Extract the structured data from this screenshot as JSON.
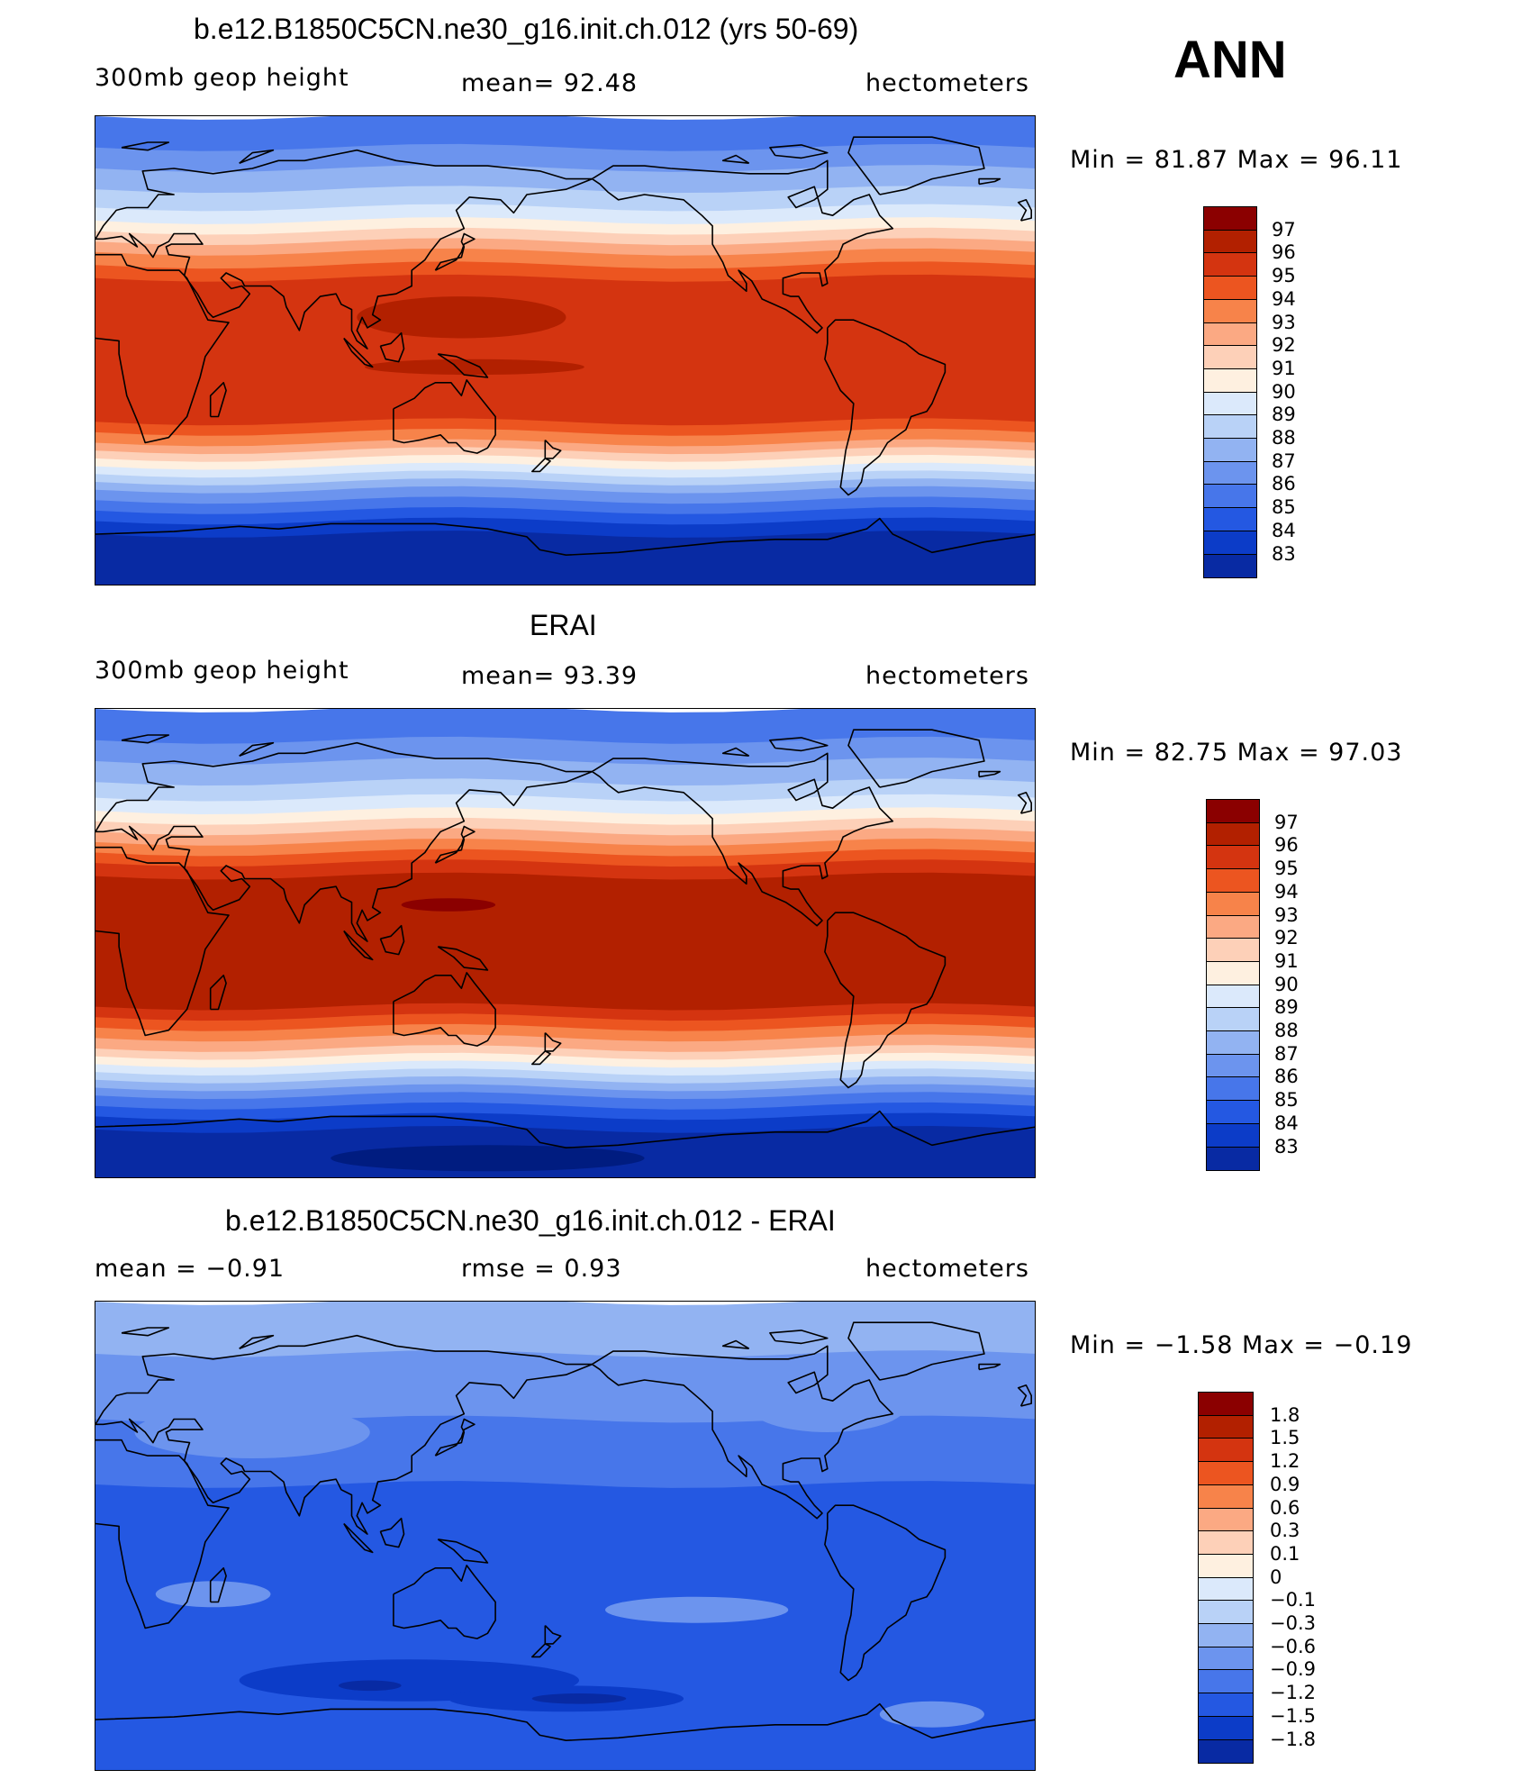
{
  "corner_label": "ANN",
  "panels": [
    {
      "title": "b.e12.B1850C5CN.ne30_g16.init.ch.012 (yrs 50-69)",
      "left_text": "300mb  geop  height",
      "center_text": "mean=   92.48",
      "units": "hectometers",
      "minmax": "Min  =    81.87  Max  =    96.11",
      "colorbar_labels": [
        "97",
        "96",
        "95",
        "94",
        "93",
        "92",
        "91",
        "90",
        "89",
        "88",
        "87",
        "86",
        "85",
        "84",
        "83"
      ]
    },
    {
      "title": "ERAI",
      "left_text": "300mb  geop  height",
      "center_text": "mean=   93.39",
      "units": "hectometers",
      "minmax": "Min  =    82.75  Max  =    97.03",
      "colorbar_labels": [
        "97",
        "96",
        "95",
        "94",
        "93",
        "92",
        "91",
        "90",
        "89",
        "88",
        "87",
        "86",
        "85",
        "84",
        "83"
      ]
    },
    {
      "title": "b.e12.B1850C5CN.ne30_g16.init.ch.012 - ERAI",
      "left_text": "mean  =    −0.91",
      "center_text": "rmse  =     0.93",
      "units": "hectometers",
      "minmax": "Min  =   −1.58  Max  =   −0.19",
      "colorbar_labels": [
        "1.8",
        "1.5",
        "1.2",
        "0.9",
        "0.6",
        "0.3",
        "0.1",
        "0",
        "−0.1",
        "−0.3",
        "−0.6",
        "−0.9",
        "−1.2",
        "−1.5",
        "−1.8"
      ]
    }
  ],
  "colors": {
    "levels": [
      "#8b0000",
      "#b22000",
      "#d43410",
      "#ec5520",
      "#f7834a",
      "#fba983",
      "#fdd0b8",
      "#fef0e0",
      "#dbe9fb",
      "#b9d2f7",
      "#92b3f2",
      "#6c94ee",
      "#4776ea",
      "#2458e2",
      "#0c3cc8",
      "#082aa3",
      "#001c80"
    ]
  },
  "map_fields": [
    {
      "bands": [
        {
          "lat": 90,
          "c": 12
        },
        {
          "lat": 78,
          "c": 11
        },
        {
          "lat": 70,
          "c": 10
        },
        {
          "lat": 62,
          "c": 9
        },
        {
          "lat": 55,
          "c": 8
        },
        {
          "lat": 50,
          "c": 7
        },
        {
          "lat": 46,
          "c": 6
        },
        {
          "lat": 42,
          "c": 5
        },
        {
          "lat": 38,
          "c": 4
        },
        {
          "lat": 33,
          "c": 3
        },
        {
          "lat": 28,
          "c": 2
        },
        {
          "lat": -27,
          "c": 3
        },
        {
          "lat": -31,
          "c": 4
        },
        {
          "lat": -35,
          "c": 5
        },
        {
          "lat": -38,
          "c": 6
        },
        {
          "lat": -41,
          "c": 7
        },
        {
          "lat": -44,
          "c": 8
        },
        {
          "lat": -47,
          "c": 9
        },
        {
          "lat": -50,
          "c": 10
        },
        {
          "lat": -53,
          "c": 11
        },
        {
          "lat": -57,
          "c": 12
        },
        {
          "lat": -61,
          "c": 13
        },
        {
          "lat": -65,
          "c": 14
        },
        {
          "lat": -70,
          "c": 15
        }
      ],
      "blobs": [
        {
          "lon": 140,
          "lat": 13,
          "rx": 40,
          "ry": 8,
          "c": 1
        },
        {
          "lon": 145,
          "lat": -6,
          "rx": 42,
          "ry": 3,
          "c": 1
        }
      ]
    },
    {
      "bands": [
        {
          "lat": 90,
          "c": 12
        },
        {
          "lat": 78,
          "c": 11
        },
        {
          "lat": 70,
          "c": 10
        },
        {
          "lat": 62,
          "c": 9
        },
        {
          "lat": 56,
          "c": 8
        },
        {
          "lat": 51,
          "c": 7
        },
        {
          "lat": 47,
          "c": 6
        },
        {
          "lat": 43,
          "c": 5
        },
        {
          "lat": 39,
          "c": 4
        },
        {
          "lat": 35,
          "c": 3
        },
        {
          "lat": 31,
          "c": 2
        },
        {
          "lat": 26,
          "c": 1
        },
        {
          "lat": -24,
          "c": 2
        },
        {
          "lat": -28,
          "c": 3
        },
        {
          "lat": -32,
          "c": 4
        },
        {
          "lat": -36,
          "c": 5
        },
        {
          "lat": -40,
          "c": 6
        },
        {
          "lat": -43,
          "c": 7
        },
        {
          "lat": -46,
          "c": 8
        },
        {
          "lat": -49,
          "c": 9
        },
        {
          "lat": -52,
          "c": 10
        },
        {
          "lat": -55,
          "c": 11
        },
        {
          "lat": -58,
          "c": 12
        },
        {
          "lat": -62,
          "c": 13
        },
        {
          "lat": -66,
          "c": 14
        },
        {
          "lat": -71,
          "c": 15
        }
      ],
      "blobs": [
        {
          "lon": 135,
          "lat": 15,
          "rx": 18,
          "ry": 2.5,
          "c": 0
        },
        {
          "lon": 150,
          "lat": -82,
          "rx": 60,
          "ry": 5,
          "c": 16
        }
      ]
    },
    {
      "bands": [
        {
          "lat": 90,
          "c": 10
        },
        {
          "lat": 70,
          "c": 11
        },
        {
          "lat": 45,
          "c": 12
        },
        {
          "lat": 20,
          "c": 13
        }
      ],
      "blobs": [
        {
          "lon": 60,
          "lat": 40,
          "rx": 45,
          "ry": 10,
          "c": 11
        },
        {
          "lon": 280,
          "lat": 50,
          "rx": 30,
          "ry": 10,
          "c": 11
        },
        {
          "lon": 45,
          "lat": -22,
          "rx": 22,
          "ry": 5,
          "c": 11
        },
        {
          "lon": 230,
          "lat": -28,
          "rx": 35,
          "ry": 5,
          "c": 11
        },
        {
          "lon": 120,
          "lat": -55,
          "rx": 65,
          "ry": 8,
          "c": 14
        },
        {
          "lon": 180,
          "lat": -62,
          "rx": 45,
          "ry": 5,
          "c": 14
        },
        {
          "lon": 105,
          "lat": -57,
          "rx": 12,
          "ry": 2,
          "c": 15
        },
        {
          "lon": 185,
          "lat": -62,
          "rx": 18,
          "ry": 2,
          "c": 15
        },
        {
          "lon": 320,
          "lat": -68,
          "rx": 20,
          "ry": 5,
          "c": 11
        }
      ]
    }
  ],
  "colorbar_colors_diff": [
    "#8b0000",
    "#b22000",
    "#d43410",
    "#ec5520",
    "#f7834a",
    "#fba983",
    "#fdd0b8",
    "#fef0e0",
    "#dbe9fb",
    "#b9d2f7",
    "#92b3f2",
    "#6c94ee",
    "#4776ea",
    "#2458e2",
    "#0c3cc8",
    "#082aa3",
    "#001c80"
  ]
}
